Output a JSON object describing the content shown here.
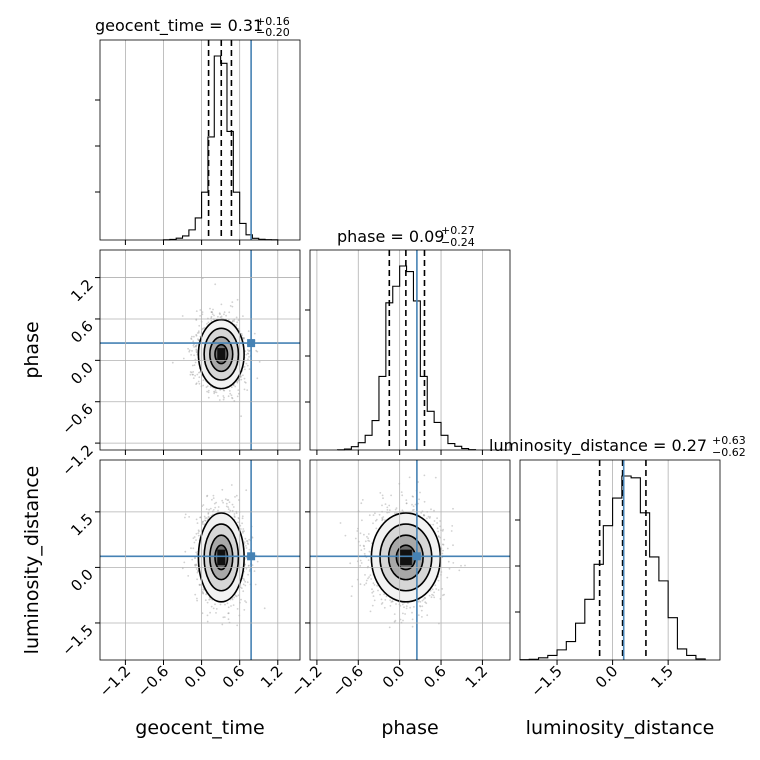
{
  "chart_data": {
    "type": "corner",
    "parameters": [
      "geocent_time",
      "phase",
      "luminosity_distance"
    ],
    "truths": {
      "geocent_time": 0.78,
      "phase": 0.25,
      "luminosity_distance": 0.3
    },
    "ranges": {
      "geocent_time": [
        -1.6,
        1.55
      ],
      "phase": [
        -1.3,
        1.6
      ],
      "luminosity_distance": [
        -2.5,
        2.9
      ]
    },
    "titles": [
      {
        "param": "geocent_time",
        "label": "geocent_time = 0.31",
        "plus": "+0.16",
        "minus": "−0.20"
      },
      {
        "param": "phase",
        "label": "phase = 0.09",
        "plus": "+0.27",
        "minus": "−0.24"
      },
      {
        "param": "luminosity_distance",
        "label": "luminosity_distance = 0.27",
        "plus": "+0.63",
        "minus": "−0.62"
      }
    ],
    "quantiles": {
      "geocent_time": [
        0.11,
        0.31,
        0.47
      ],
      "phase": [
        -0.15,
        0.09,
        0.36
      ],
      "luminosity_distance": [
        -0.35,
        0.27,
        0.9
      ]
    },
    "tick_labels": {
      "geocent_time": [
        "−1.2",
        "−0.6",
        "0.0",
        "0.6",
        "1.2"
      ],
      "phase": [
        "−1.2",
        "−0.6",
        "0.0",
        "0.6",
        "1.2"
      ],
      "luminosity_distance": [
        "−1.5",
        "0.0",
        "1.5"
      ]
    },
    "tick_values": {
      "geocent_time": [
        -1.2,
        -0.6,
        0.0,
        0.6,
        1.2
      ],
      "phase": [
        -1.2,
        -0.6,
        0.0,
        0.6,
        1.2
      ],
      "luminosity_distance": [
        -1.5,
        0.0,
        1.5
      ]
    },
    "histograms": {
      "geocent_time": {
        "edges": [
          -0.6,
          -0.5,
          -0.4,
          -0.3,
          -0.2,
          -0.1,
          0.0,
          0.1,
          0.2,
          0.3,
          0.4,
          0.5,
          0.6,
          0.7,
          0.8,
          0.9,
          1.0,
          1.1,
          1.2
        ],
        "counts": [
          1,
          3,
          10,
          22,
          55,
          120,
          260,
          560,
          1000,
          960,
          590,
          260,
          90,
          28,
          9,
          4,
          2,
          1
        ]
      },
      "phase": {
        "edges": [
          -0.9,
          -0.8,
          -0.7,
          -0.6,
          -0.5,
          -0.4,
          -0.3,
          -0.2,
          -0.1,
          0.0,
          0.1,
          0.2,
          0.3,
          0.4,
          0.5,
          0.6,
          0.7,
          0.8,
          0.9,
          1.0,
          1.1
        ],
        "counts": [
          1,
          5,
          18,
          40,
          80,
          160,
          400,
          800,
          890,
          1000,
          970,
          810,
          400,
          210,
          150,
          80,
          35,
          20,
          8,
          2
        ]
      },
      "luminosity_distance": {
        "edges": [
          -2.5,
          -2.25,
          -2.0,
          -1.75,
          -1.5,
          -1.25,
          -1.0,
          -0.75,
          -0.5,
          -0.25,
          0.0,
          0.25,
          0.5,
          0.75,
          1.0,
          1.25,
          1.5,
          1.75,
          2.0,
          2.25,
          2.5
        ],
        "counts": [
          2,
          4,
          12,
          25,
          55,
          100,
          200,
          330,
          520,
          730,
          880,
          1000,
          990,
          800,
          560,
          430,
          230,
          60,
          25,
          6
        ]
      }
    },
    "posterior": {
      "mean": {
        "geocent_time": 0.31,
        "phase": 0.09,
        "luminosity_distance": 0.27
      },
      "sd": {
        "geocent_time": 0.18,
        "phase": 0.25,
        "luminosity_distance": 0.6
      }
    },
    "grid": true
  }
}
